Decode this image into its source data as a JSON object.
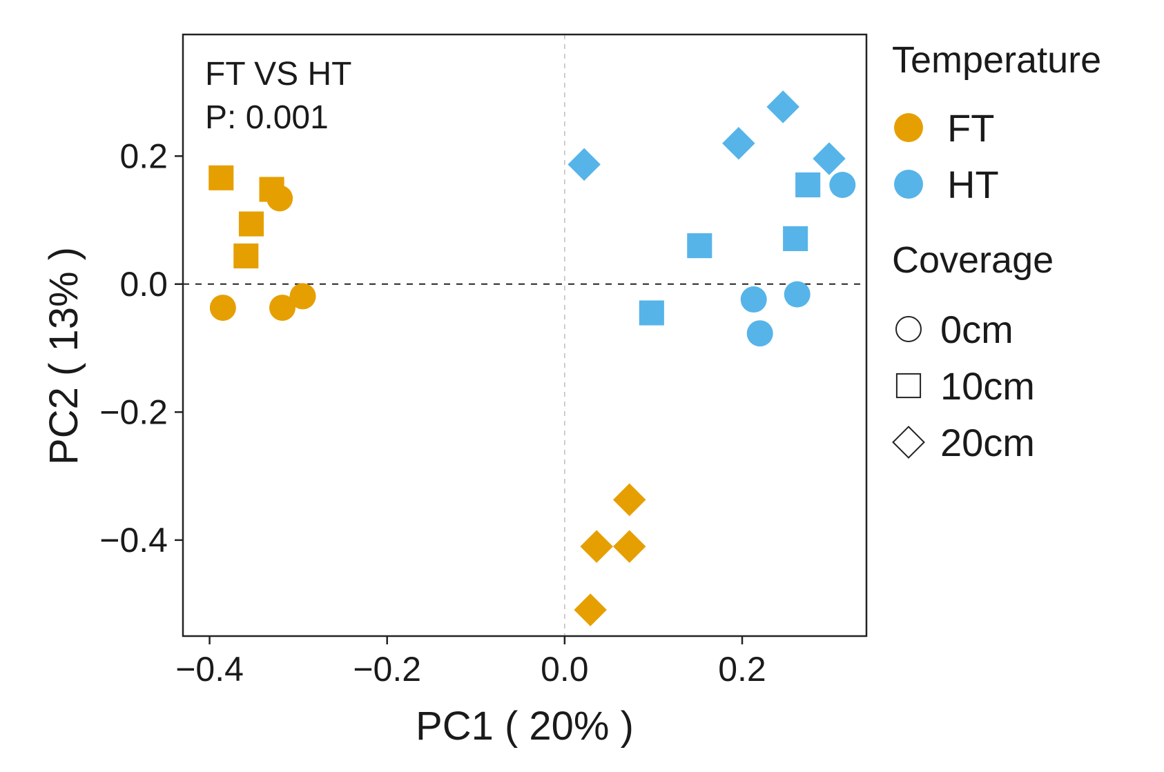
{
  "chart_data": {
    "type": "scatter",
    "annotation": [
      "FT VS HT",
      "P: 0.001"
    ],
    "xlabel": "PC1 ( 20% )",
    "ylabel": "PC2 ( 13% )",
    "xlim": [
      -0.43,
      0.34
    ],
    "ylim": [
      -0.55,
      0.39
    ],
    "xticks": [
      -0.4,
      -0.2,
      0.0,
      0.2
    ],
    "xtick_labels": [
      "−0.4",
      "−0.2",
      "0.0",
      "0.2"
    ],
    "yticks": [
      -0.4,
      -0.2,
      0.0,
      0.2
    ],
    "ytick_labels": [
      "−0.4",
      "−0.2",
      "0.0",
      "0.2"
    ],
    "reference_lines": {
      "horizontal_y": 0.0,
      "vertical_x": 0.0
    },
    "grid": false,
    "legend": {
      "placement": "right",
      "color_title": "Temperature",
      "color_entries": [
        {
          "label": "FT",
          "color": "#e69f00"
        },
        {
          "label": "HT",
          "color": "#56b4e9"
        }
      ],
      "shape_title": "Coverage",
      "shape_entries": [
        {
          "label": "0cm",
          "shape": "circle"
        },
        {
          "label": "10cm",
          "shape": "square"
        },
        {
          "label": "20cm",
          "shape": "diamond"
        }
      ]
    },
    "series": [
      {
        "name": "FT",
        "color": "#e69f00",
        "points": [
          {
            "x": -0.387,
            "y": 0.166,
            "coverage": "10cm"
          },
          {
            "x": -0.33,
            "y": 0.148,
            "coverage": "10cm"
          },
          {
            "x": -0.353,
            "y": 0.094,
            "coverage": "10cm"
          },
          {
            "x": -0.359,
            "y": 0.044,
            "coverage": "10cm"
          },
          {
            "x": -0.321,
            "y": 0.134,
            "coverage": "0cm"
          },
          {
            "x": -0.385,
            "y": -0.037,
            "coverage": "0cm"
          },
          {
            "x": -0.318,
            "y": -0.037,
            "coverage": "0cm"
          },
          {
            "x": -0.295,
            "y": -0.019,
            "coverage": "0cm"
          },
          {
            "x": 0.073,
            "y": -0.337,
            "coverage": "20cm"
          },
          {
            "x": 0.036,
            "y": -0.41,
            "coverage": "20cm"
          },
          {
            "x": 0.073,
            "y": -0.41,
            "coverage": "20cm"
          },
          {
            "x": 0.029,
            "y": -0.509,
            "coverage": "20cm"
          }
        ]
      },
      {
        "name": "HT",
        "color": "#56b4e9",
        "points": [
          {
            "x": 0.022,
            "y": 0.187,
            "coverage": "20cm"
          },
          {
            "x": 0.196,
            "y": 0.22,
            "coverage": "20cm"
          },
          {
            "x": 0.246,
            "y": 0.277,
            "coverage": "20cm"
          },
          {
            "x": 0.298,
            "y": 0.196,
            "coverage": "20cm"
          },
          {
            "x": 0.274,
            "y": 0.155,
            "coverage": "10cm"
          },
          {
            "x": 0.152,
            "y": 0.06,
            "coverage": "10cm"
          },
          {
            "x": 0.26,
            "y": 0.071,
            "coverage": "10cm"
          },
          {
            "x": 0.098,
            "y": -0.045,
            "coverage": "10cm"
          },
          {
            "x": 0.313,
            "y": 0.155,
            "coverage": "0cm"
          },
          {
            "x": 0.213,
            "y": -0.024,
            "coverage": "0cm"
          },
          {
            "x": 0.262,
            "y": -0.016,
            "coverage": "0cm"
          },
          {
            "x": 0.22,
            "y": -0.077,
            "coverage": "0cm"
          }
        ]
      }
    ]
  }
}
